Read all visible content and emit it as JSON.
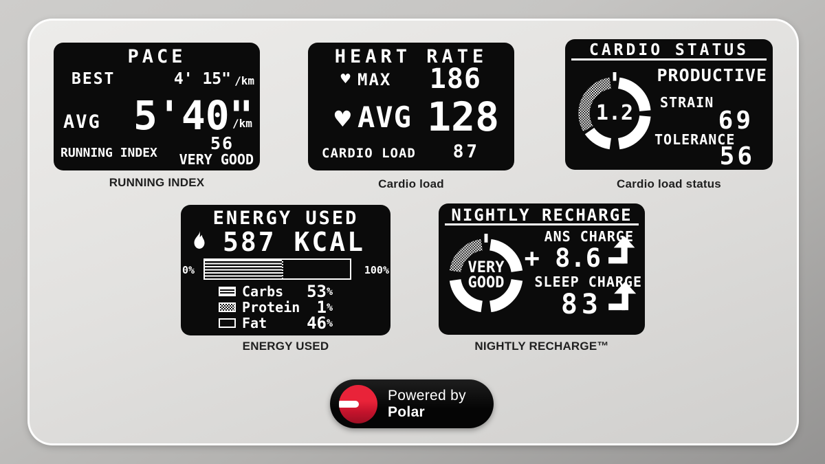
{
  "panels": {
    "pace": {
      "title": "PACE",
      "best_label": "BEST",
      "best_value": "4' 15\"",
      "best_unit": "/km",
      "avg_label": "AVG",
      "avg_value": "5'40\"",
      "avg_unit": "/km",
      "index_value": "56",
      "index_label": "RUNNING INDEX",
      "index_rating": "VERY GOOD",
      "caption": "RUNNING INDEX"
    },
    "heart_rate": {
      "title": "HEART RATE",
      "max_label": "MAX",
      "max_value": "186",
      "avg_label": "AVG",
      "avg_value": "128",
      "load_label": "CARDIO LOAD",
      "load_value": "87",
      "caption": "Cardio load"
    },
    "cardio_status": {
      "title": "CARDIO STATUS",
      "status": "PRODUCTIVE",
      "ratio_value": "1.2",
      "strain_label": "STRAIN",
      "strain_value": "69",
      "tolerance_label": "TOLERANCE",
      "tolerance_value": "56",
      "caption": "Cardio load status"
    },
    "energy_used": {
      "title": "ENERGY USED",
      "kcal_value": "587 KCAL",
      "scale_min": "0%",
      "scale_max": "100%",
      "bar_fill_percent": 53,
      "bar_secondary_percent": 1,
      "legend": [
        {
          "label": "Carbs",
          "value": "53",
          "pattern": "stripes"
        },
        {
          "label": "Protein",
          "value": "1",
          "pattern": "dither"
        },
        {
          "label": "Fat",
          "value": "46",
          "pattern": "empty"
        }
      ],
      "caption": "ENERGY USED"
    },
    "nightly_recharge": {
      "title": "NIGHTLY RECHARGE",
      "status_line1": "VERY",
      "status_line2": "GOOD",
      "ans_label": "ANS CHARGE",
      "ans_value": "+ 8.6",
      "sleep_label": "SLEEP CHARGE",
      "sleep_value": "83",
      "caption": "NIGHTLY RECHARGE™"
    }
  },
  "footer": {
    "powered_by": "Powered by",
    "brand": "Polar"
  },
  "icons": {
    "heart": "♥"
  },
  "units": {
    "percent": "%"
  },
  "colors": {
    "badge_red": "#d91a32",
    "display_bg": "#0b0b0b",
    "card_gray": "#e4e3e1"
  }
}
